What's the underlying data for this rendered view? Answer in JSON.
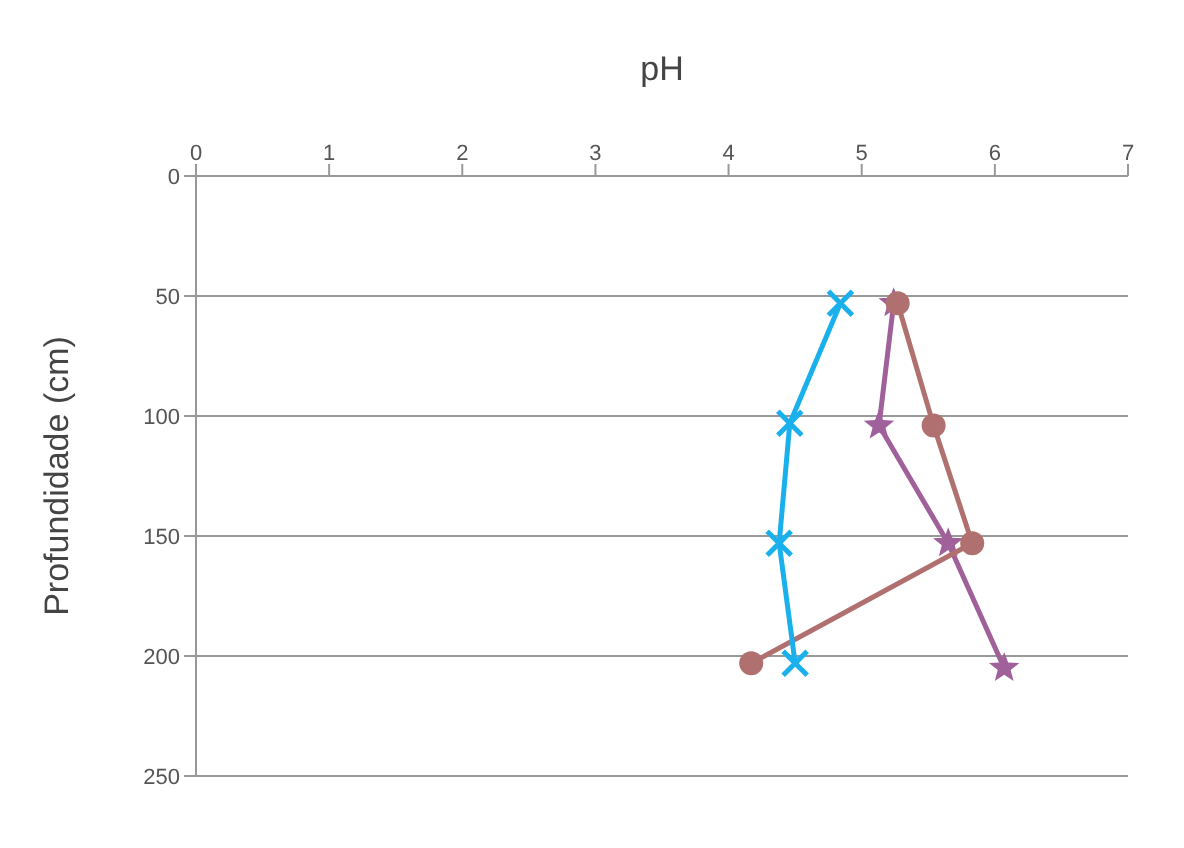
{
  "chart_data": {
    "type": "line",
    "xlabel": "pH",
    "ylabel": "Profundidade (cm)",
    "xlim": [
      0,
      7
    ],
    "xticks": [
      0,
      1,
      2,
      3,
      4,
      5,
      6,
      7
    ],
    "ylim": [
      250,
      0
    ],
    "yticks": [
      0,
      50,
      100,
      150,
      200,
      250
    ],
    "grid": "y",
    "legend": false,
    "series": [
      {
        "color": "#1ab0ec",
        "marker": "cross",
        "x": [
          4.84,
          4.46,
          4.38,
          4.5
        ],
        "values": [
          53,
          103,
          153,
          203
        ]
      },
      {
        "color": "#b07070",
        "marker": "circle",
        "x": [
          5.27,
          5.54,
          5.83,
          4.17
        ],
        "values": [
          53,
          104,
          153,
          203
        ]
      },
      {
        "color": "#a0609a",
        "marker": "star",
        "x": [
          5.24,
          5.13,
          5.65,
          6.07
        ],
        "values": [
          53,
          104,
          153,
          205
        ]
      }
    ]
  }
}
